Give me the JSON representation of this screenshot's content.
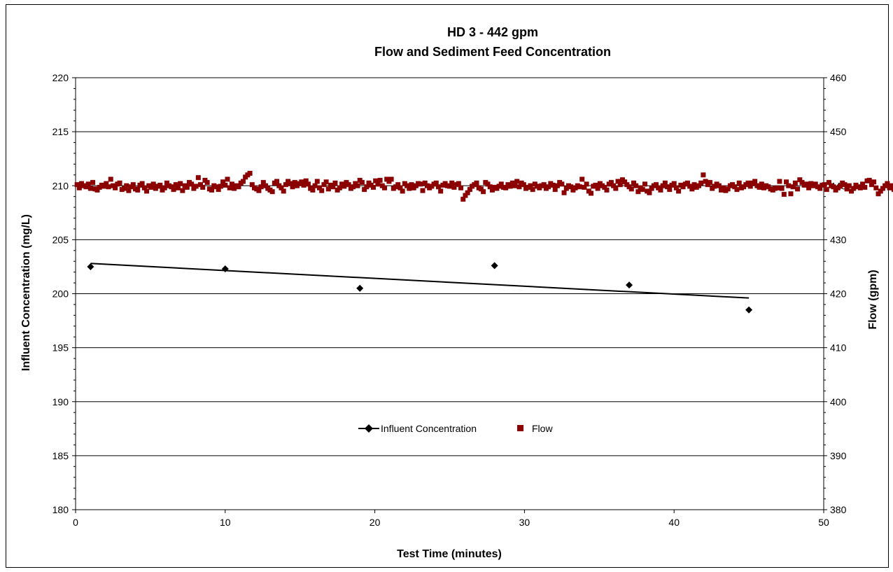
{
  "chart_data": {
    "type": "scatter",
    "title": "HD 3 - 442 gpm",
    "subtitle": "Flow and Sediment Feed Concentration",
    "xlabel": "Test Time (minutes)",
    "ylabel_left": "Influent Concentration (mg/L)",
    "ylabel_right": "Flow (gpm)",
    "xlim": [
      0,
      50
    ],
    "ylim_left": [
      180,
      220
    ],
    "ylim_right": [
      380,
      460
    ],
    "x_ticks": [
      "0",
      "10",
      "20",
      "30",
      "40",
      "50"
    ],
    "y_left_ticks": [
      "180",
      "185",
      "190",
      "195",
      "200",
      "205",
      "210",
      "215",
      "220"
    ],
    "y_right_ticks": [
      "380",
      "390",
      "400",
      "410",
      "420",
      "430",
      "440",
      "450",
      "460"
    ],
    "grid": "horizontal major gridlines",
    "legend_position": "center",
    "series": [
      {
        "name": "Influent Concentration",
        "axis": "left",
        "marker": "diamond",
        "color": "#000000",
        "x": [
          1,
          10,
          19,
          28,
          37,
          45
        ],
        "y": [
          202.5,
          202.3,
          200.5,
          202.6,
          200.8,
          198.5
        ],
        "trendline": {
          "x": [
            1,
            45
          ],
          "y": [
            202.8,
            199.6
          ]
        }
      },
      {
        "name": "Flow",
        "axis": "right",
        "marker": "square",
        "color": "#8B0000",
        "x_start": 0.1,
        "x_step": 0.15,
        "y": [
          440.2,
          439.6,
          440.4,
          440.0,
          439.8,
          440.3,
          439.5,
          440.6,
          439.4,
          439.2,
          439.7,
          440.1,
          439.9,
          440.4,
          439.8,
          441.2,
          440.0,
          439.6,
          440.3,
          440.5,
          439.3,
          439.5,
          440.0,
          439.1,
          439.8,
          440.2,
          439.4,
          439.2,
          440.1,
          440.4,
          439.6,
          439.0,
          440.0,
          439.7,
          440.3,
          439.5,
          439.9,
          440.1,
          439.2,
          439.6,
          440.5,
          440.0,
          439.8,
          439.3,
          440.2,
          439.6,
          440.4,
          439.1,
          440.0,
          439.7,
          440.6,
          440.3,
          439.5,
          439.9,
          441.5,
          440.2,
          439.7,
          441.0,
          440.6,
          439.4,
          439.2,
          440.0,
          439.8,
          439.3,
          439.9,
          440.7,
          440.1,
          441.2,
          439.6,
          440.3,
          439.5,
          440.0,
          439.8,
          440.5,
          440.8,
          441.6,
          442.0,
          442.3,
          440.2,
          439.6,
          439.4,
          439.1,
          439.8,
          440.6,
          440.0,
          439.5,
          439.2,
          438.9,
          440.5,
          440.8,
          440.0,
          439.6,
          439.0,
          440.2,
          440.8,
          440.4,
          439.8,
          440.6,
          440.0,
          440.4,
          440.7,
          440.1,
          440.9,
          440.3,
          439.5,
          439.2,
          440.0,
          440.8,
          439.6,
          439.1,
          440.2,
          440.7,
          439.4,
          440.1,
          439.8,
          440.5,
          439.2,
          439.6,
          440.3,
          439.9,
          440.6,
          440.2,
          439.5,
          439.8,
          440.4,
          440.0,
          441.0,
          440.6,
          439.3,
          439.8,
          440.5,
          440.1,
          439.7,
          440.9,
          440.3,
          441.0,
          440.0,
          439.6,
          441.2,
          440.8,
          441.2,
          439.5,
          439.8,
          440.2,
          439.6,
          439.0,
          440.4,
          440.0,
          439.5,
          440.2,
          439.6,
          440.0,
          440.4,
          440.3,
          439.1,
          440.5,
          440.0,
          439.6,
          439.9,
          440.3,
          440.5,
          439.8,
          439.0,
          440.1,
          440.4,
          440.0,
          439.9,
          440.5,
          439.7,
          440.2,
          440.4,
          439.6,
          437.5,
          438.2,
          438.7,
          439.3,
          439.9,
          440.2,
          440.5,
          439.6,
          439.4,
          438.9,
          440.6,
          440.3,
          439.8,
          439.2,
          439.7,
          439.5,
          439.9,
          440.3,
          439.7,
          439.6,
          440.2,
          439.9,
          440.5,
          440.0,
          440.8,
          439.8,
          440.5,
          440.2,
          439.5,
          439.7,
          440.0,
          439.3,
          440.3,
          439.9,
          439.6,
          440.0,
          440.2,
          439.5,
          439.8,
          440.4,
          440.1,
          439.3,
          440.0,
          440.6,
          440.3,
          438.7,
          439.5,
          440.0,
          439.8,
          439.2,
          439.6,
          440.0,
          439.8,
          441.2,
          439.7,
          440.3,
          439.0,
          438.6,
          439.9,
          440.1,
          439.5,
          440.4,
          440.0,
          439.7,
          439.2,
          440.3,
          440.6,
          440.0,
          439.5,
          440.8,
          440.2,
          441.1,
          440.7,
          440.2,
          439.8,
          439.4,
          440.5,
          440.0,
          438.9,
          439.6,
          439.3,
          440.3,
          439.0,
          438.7,
          439.5,
          440.0,
          440.2,
          439.6,
          439.2,
          440.0,
          440.5,
          439.8,
          439.3,
          440.1,
          440.4,
          439.6,
          439.0,
          440.1,
          439.8,
          440.3,
          440.5,
          439.9,
          439.4,
          440.2,
          439.7,
          440.0,
          440.5,
          442.0,
          440.8,
          440.2,
          440.6,
          439.5,
          439.9,
          440.3,
          440.0,
          439.2,
          439.6,
          439.1,
          439.4,
          440.0,
          440.2,
          439.8,
          439.3,
          440.5,
          439.6,
          439.8,
          440.2,
          440.5,
          439.9,
          440.5,
          440.8,
          440.0,
          439.7,
          440.3,
          439.6,
          440.0,
          439.8,
          439.4,
          439.2,
          439.5,
          439.6,
          440.8,
          439.5,
          438.4,
          440.7,
          440.0,
          438.5,
          439.8,
          440.5,
          439.4,
          441.1,
          440.6,
          440.1,
          440.3,
          439.6,
          440.4,
          440.0,
          440.3,
          439.8,
          439.5,
          440.1,
          440.2,
          439.3,
          440.6,
          440.0,
          439.8,
          439.2,
          439.6,
          439.9,
          440.5,
          440.2,
          439.4,
          440.0,
          439.0,
          439.5,
          440.1,
          439.8,
          439.6,
          440.3,
          439.7,
          440.9,
          441.0,
          440.2,
          440.7,
          439.6,
          438.5,
          439.0,
          439.5,
          440.0,
          440.4,
          439.6,
          440.0,
          439.3,
          439.8,
          440.2,
          440.5,
          439.6,
          440.0,
          439.2,
          439.8,
          440.3,
          440.5,
          439.4,
          440.0,
          439.9,
          440.6,
          439.7,
          439.2,
          440.1,
          439.6,
          440.7,
          439.9,
          440.5,
          440.0,
          439.8,
          439.4,
          440.2,
          440.6,
          439.5,
          440.0,
          439.3
        ]
      }
    ]
  }
}
